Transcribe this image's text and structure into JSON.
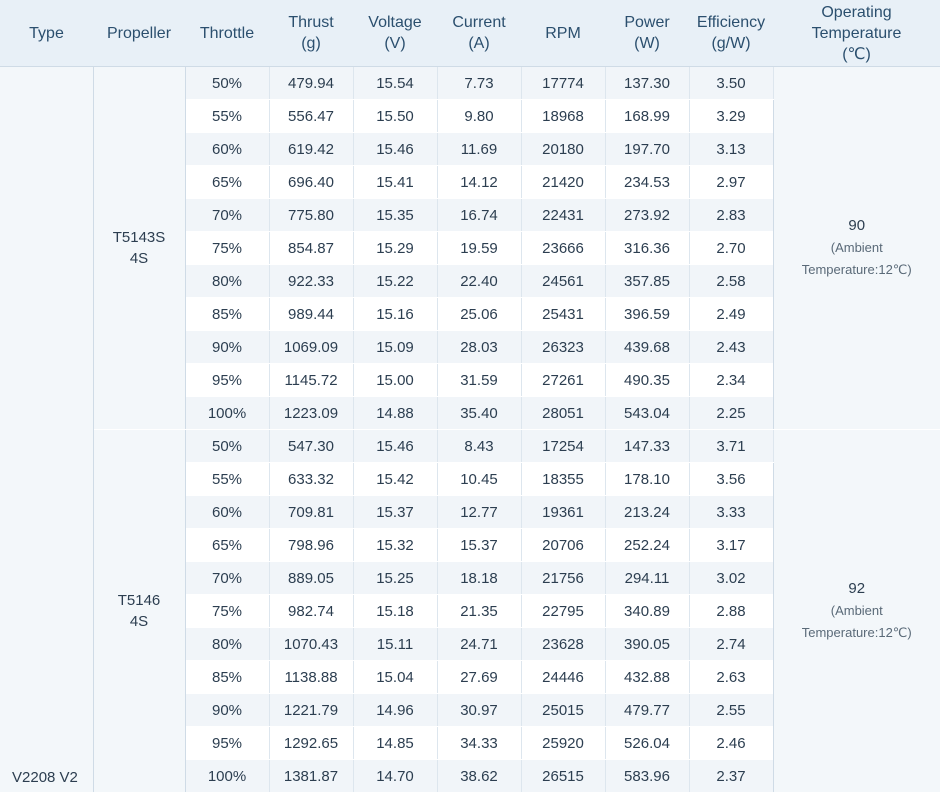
{
  "headers": {
    "type": "Type",
    "propeller": "Propeller",
    "throttle": "Throttle",
    "thrust": [
      "Thrust",
      "(g)"
    ],
    "voltage": [
      "Voltage",
      "(V)"
    ],
    "current": [
      "Current",
      "(A)"
    ],
    "rpm": "RPM",
    "power": [
      "Power",
      "(W)"
    ],
    "efficiency": [
      "Efficiency",
      "(g/W)"
    ],
    "temperature": [
      "Operating",
      "Temperature",
      "(℃)"
    ]
  },
  "type": "V2208 V2",
  "groups": [
    {
      "propeller": [
        "T5143S",
        "4S"
      ],
      "temperature": "90",
      "temp_note": [
        "(Ambient",
        "Temperature:12℃)"
      ],
      "rows": [
        [
          "50%",
          "479.94",
          "15.54",
          "7.73",
          "17774",
          "137.30",
          "3.50"
        ],
        [
          "55%",
          "556.47",
          "15.50",
          "9.80",
          "18968",
          "168.99",
          "3.29"
        ],
        [
          "60%",
          "619.42",
          "15.46",
          "11.69",
          "20180",
          "197.70",
          "3.13"
        ],
        [
          "65%",
          "696.40",
          "15.41",
          "14.12",
          "21420",
          "234.53",
          "2.97"
        ],
        [
          "70%",
          "775.80",
          "15.35",
          "16.74",
          "22431",
          "273.92",
          "2.83"
        ],
        [
          "75%",
          "854.87",
          "15.29",
          "19.59",
          "23666",
          "316.36",
          "2.70"
        ],
        [
          "80%",
          "922.33",
          "15.22",
          "22.40",
          "24561",
          "357.85",
          "2.58"
        ],
        [
          "85%",
          "989.44",
          "15.16",
          "25.06",
          "25431",
          "396.59",
          "2.49"
        ],
        [
          "90%",
          "1069.09",
          "15.09",
          "28.03",
          "26323",
          "439.68",
          "2.43"
        ],
        [
          "95%",
          "1145.72",
          "15.00",
          "31.59",
          "27261",
          "490.35",
          "2.34"
        ],
        [
          "100%",
          "1223.09",
          "14.88",
          "35.40",
          "28051",
          "543.04",
          "2.25"
        ]
      ]
    },
    {
      "propeller": [
        "T5146",
        "4S"
      ],
      "temperature": "92",
      "temp_note": [
        "(Ambient",
        "Temperature:12℃)"
      ],
      "rows": [
        [
          "50%",
          "547.30",
          "15.46",
          "8.43",
          "17254",
          "147.33",
          "3.71"
        ],
        [
          "55%",
          "633.32",
          "15.42",
          "10.45",
          "18355",
          "178.10",
          "3.56"
        ],
        [
          "60%",
          "709.81",
          "15.37",
          "12.77",
          "19361",
          "213.24",
          "3.33"
        ],
        [
          "65%",
          "798.96",
          "15.32",
          "15.37",
          "20706",
          "252.24",
          "3.17"
        ],
        [
          "70%",
          "889.05",
          "15.25",
          "18.18",
          "21756",
          "294.11",
          "3.02"
        ],
        [
          "75%",
          "982.74",
          "15.18",
          "21.35",
          "22795",
          "340.89",
          "2.88"
        ],
        [
          "80%",
          "1070.43",
          "15.11",
          "24.71",
          "23628",
          "390.05",
          "2.74"
        ],
        [
          "85%",
          "1138.88",
          "15.04",
          "27.69",
          "24446",
          "432.88",
          "2.63"
        ],
        [
          "90%",
          "1221.79",
          "14.96",
          "30.97",
          "25015",
          "479.77",
          "2.55"
        ],
        [
          "95%",
          "1292.65",
          "14.85",
          "34.33",
          "25920",
          "526.04",
          "2.46"
        ],
        [
          "100%",
          "1381.87",
          "14.70",
          "38.62",
          "26515",
          "583.96",
          "2.37"
        ]
      ]
    }
  ]
}
